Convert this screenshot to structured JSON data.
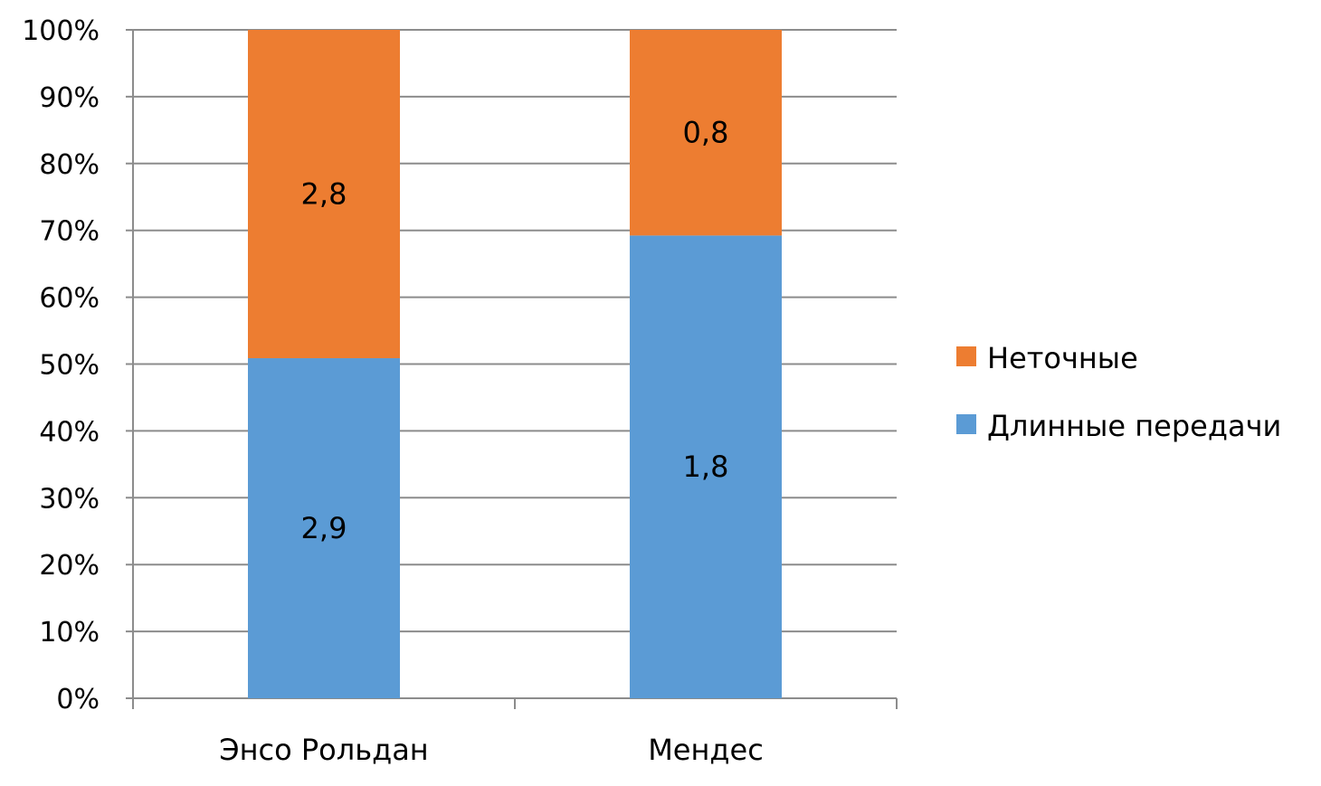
{
  "chart_data": {
    "type": "bar",
    "stacked": "percent",
    "categories": [
      "Энсо Рольдан",
      "Мендес"
    ],
    "series": [
      {
        "name": "Длинные передачи",
        "values": [
          2.9,
          1.8
        ],
        "labels": [
          "2,9",
          "1,8"
        ],
        "color": "#5b9bd5"
      },
      {
        "name": "Неточные",
        "values": [
          2.8,
          0.8
        ],
        "labels": [
          "2,8",
          "0,8"
        ],
        "color": "#ed7d31"
      }
    ],
    "y_ticks": [
      "0%",
      "10%",
      "20%",
      "30%",
      "40%",
      "50%",
      "60%",
      "70%",
      "80%",
      "90%",
      "100%"
    ],
    "ylim": [
      0,
      100
    ],
    "grid": true,
    "legend_position": "right",
    "legend_order": [
      1,
      0
    ]
  }
}
